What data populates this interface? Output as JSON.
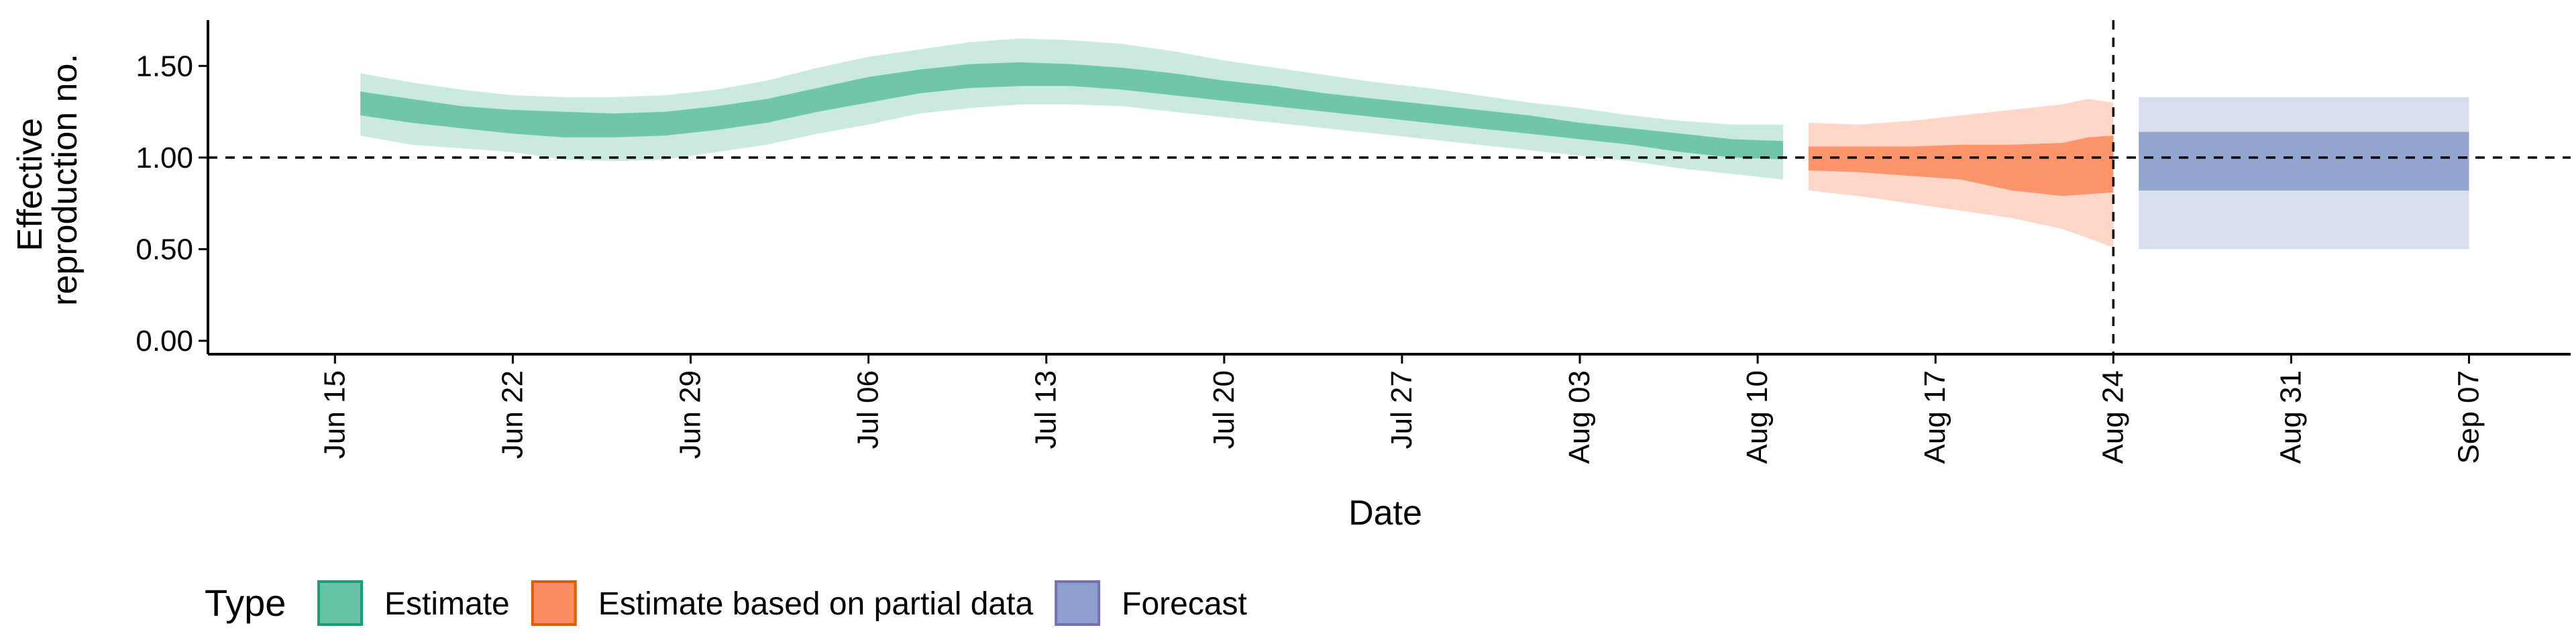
{
  "chart_data": {
    "type": "area",
    "xlabel": "Date",
    "ylabel_lines": [
      "Effective",
      "reproduction no."
    ],
    "ylim": [
      0,
      1.75
    ],
    "y_ticks": [
      {
        "value": 0.0,
        "label": "0.00"
      },
      {
        "value": 0.5,
        "label": "0.50"
      },
      {
        "value": 1.0,
        "label": "1.00"
      },
      {
        "value": 1.5,
        "label": "1.50"
      }
    ],
    "xlim": [
      "2020-06-10",
      "2020-09-11"
    ],
    "x_ticks": [
      {
        "date": "2020-06-15",
        "label": "Jun 15"
      },
      {
        "date": "2020-06-22",
        "label": "Jun 22"
      },
      {
        "date": "2020-06-29",
        "label": "Jun 29"
      },
      {
        "date": "2020-07-06",
        "label": "Jul 06"
      },
      {
        "date": "2020-07-13",
        "label": "Jul 13"
      },
      {
        "date": "2020-07-20",
        "label": "Jul 20"
      },
      {
        "date": "2020-07-27",
        "label": "Jul 27"
      },
      {
        "date": "2020-08-03",
        "label": "Aug 03"
      },
      {
        "date": "2020-08-10",
        "label": "Aug 10"
      },
      {
        "date": "2020-08-17",
        "label": "Aug 17"
      },
      {
        "date": "2020-08-24",
        "label": "Aug 24"
      },
      {
        "date": "2020-08-31",
        "label": "Aug 31"
      },
      {
        "date": "2020-09-07",
        "label": "Sep 07"
      }
    ],
    "hline": 1.0,
    "vline": "2020-08-24",
    "grid": false,
    "legend_position": "bottom-left",
    "legend_title": "Type",
    "series": [
      {
        "name": "Estimate",
        "fill": "#66c2a5",
        "border": "#1b9e77",
        "points": [
          {
            "date": "2020-06-16",
            "lo90": 1.12,
            "lo50": 1.23,
            "hi50": 1.36,
            "hi90": 1.46
          },
          {
            "date": "2020-06-18",
            "lo90": 1.07,
            "lo50": 1.19,
            "hi50": 1.32,
            "hi90": 1.41
          },
          {
            "date": "2020-06-20",
            "lo90": 1.05,
            "lo50": 1.16,
            "hi50": 1.28,
            "hi90": 1.37
          },
          {
            "date": "2020-06-22",
            "lo90": 1.03,
            "lo50": 1.13,
            "hi50": 1.26,
            "hi90": 1.34
          },
          {
            "date": "2020-06-24",
            "lo90": 0.99,
            "lo50": 1.11,
            "hi50": 1.25,
            "hi90": 1.33
          },
          {
            "date": "2020-06-26",
            "lo90": 0.98,
            "lo50": 1.11,
            "hi50": 1.24,
            "hi90": 1.33
          },
          {
            "date": "2020-06-28",
            "lo90": 0.99,
            "lo50": 1.12,
            "hi50": 1.25,
            "hi90": 1.34
          },
          {
            "date": "2020-06-30",
            "lo90": 1.03,
            "lo50": 1.15,
            "hi50": 1.28,
            "hi90": 1.37
          },
          {
            "date": "2020-07-02",
            "lo90": 1.07,
            "lo50": 1.19,
            "hi50": 1.32,
            "hi90": 1.42
          },
          {
            "date": "2020-07-04",
            "lo90": 1.13,
            "lo50": 1.25,
            "hi50": 1.38,
            "hi90": 1.49
          },
          {
            "date": "2020-07-06",
            "lo90": 1.18,
            "lo50": 1.3,
            "hi50": 1.44,
            "hi90": 1.55
          },
          {
            "date": "2020-07-08",
            "lo90": 1.24,
            "lo50": 1.35,
            "hi50": 1.48,
            "hi90": 1.59
          },
          {
            "date": "2020-07-10",
            "lo90": 1.27,
            "lo50": 1.38,
            "hi50": 1.51,
            "hi90": 1.63
          },
          {
            "date": "2020-07-12",
            "lo90": 1.29,
            "lo50": 1.39,
            "hi50": 1.52,
            "hi90": 1.65
          },
          {
            "date": "2020-07-14",
            "lo90": 1.29,
            "lo50": 1.39,
            "hi50": 1.51,
            "hi90": 1.64
          },
          {
            "date": "2020-07-16",
            "lo90": 1.28,
            "lo50": 1.37,
            "hi50": 1.49,
            "hi90": 1.62
          },
          {
            "date": "2020-07-18",
            "lo90": 1.25,
            "lo50": 1.34,
            "hi50": 1.46,
            "hi90": 1.58
          },
          {
            "date": "2020-07-20",
            "lo90": 1.22,
            "lo50": 1.31,
            "hi50": 1.42,
            "hi90": 1.53
          },
          {
            "date": "2020-07-22",
            "lo90": 1.19,
            "lo50": 1.28,
            "hi50": 1.39,
            "hi90": 1.49
          },
          {
            "date": "2020-07-24",
            "lo90": 1.16,
            "lo50": 1.25,
            "hi50": 1.35,
            "hi90": 1.45
          },
          {
            "date": "2020-07-26",
            "lo90": 1.13,
            "lo50": 1.22,
            "hi50": 1.32,
            "hi90": 1.41
          },
          {
            "date": "2020-07-28",
            "lo90": 1.1,
            "lo50": 1.19,
            "hi50": 1.29,
            "hi90": 1.38
          },
          {
            "date": "2020-07-30",
            "lo90": 1.07,
            "lo50": 1.16,
            "hi50": 1.26,
            "hi90": 1.34
          },
          {
            "date": "2020-08-01",
            "lo90": 1.04,
            "lo50": 1.13,
            "hi50": 1.23,
            "hi90": 1.3
          },
          {
            "date": "2020-08-03",
            "lo90": 1.01,
            "lo50": 1.1,
            "hi50": 1.19,
            "hi90": 1.27
          },
          {
            "date": "2020-08-05",
            "lo90": 0.98,
            "lo50": 1.07,
            "hi50": 1.16,
            "hi90": 1.23
          },
          {
            "date": "2020-08-07",
            "lo90": 0.94,
            "lo50": 1.03,
            "hi50": 1.13,
            "hi90": 1.2
          },
          {
            "date": "2020-08-09",
            "lo90": 0.91,
            "lo50": 1.0,
            "hi50": 1.1,
            "hi90": 1.18
          },
          {
            "date": "2020-08-11",
            "lo90": 0.88,
            "lo50": 0.99,
            "hi50": 1.09,
            "hi90": 1.18
          }
        ]
      },
      {
        "name": "Estimate based on partial data",
        "fill": "#fc8d62",
        "border": "#d95f02",
        "points": [
          {
            "date": "2020-08-12",
            "lo90": 0.82,
            "lo50": 0.93,
            "hi50": 1.06,
            "hi90": 1.19
          },
          {
            "date": "2020-08-14",
            "lo90": 0.79,
            "lo50": 0.92,
            "hi50": 1.06,
            "hi90": 1.18
          },
          {
            "date": "2020-08-16",
            "lo90": 0.75,
            "lo50": 0.9,
            "hi50": 1.06,
            "hi90": 1.2
          },
          {
            "date": "2020-08-18",
            "lo90": 0.71,
            "lo50": 0.88,
            "hi50": 1.07,
            "hi90": 1.23
          },
          {
            "date": "2020-08-20",
            "lo90": 0.67,
            "lo50": 0.82,
            "hi50": 1.07,
            "hi90": 1.26
          },
          {
            "date": "2020-08-22",
            "lo90": 0.61,
            "lo50": 0.79,
            "hi50": 1.08,
            "hi90": 1.29
          },
          {
            "date": "2020-08-23",
            "lo90": 0.56,
            "lo50": 0.8,
            "hi50": 1.11,
            "hi90": 1.32
          },
          {
            "date": "2020-08-24",
            "lo90": 0.51,
            "lo50": 0.81,
            "hi50": 1.12,
            "hi90": 1.3
          }
        ]
      },
      {
        "name": "Forecast",
        "fill": "#8da0cb",
        "border": "#7570b3",
        "points": [
          {
            "date": "2020-08-25",
            "lo90": 0.5,
            "lo50": 0.82,
            "hi50": 1.14,
            "hi90": 1.33
          },
          {
            "date": "2020-09-07",
            "lo90": 0.5,
            "lo50": 0.82,
            "hi50": 1.14,
            "hi90": 1.33
          }
        ]
      }
    ]
  }
}
